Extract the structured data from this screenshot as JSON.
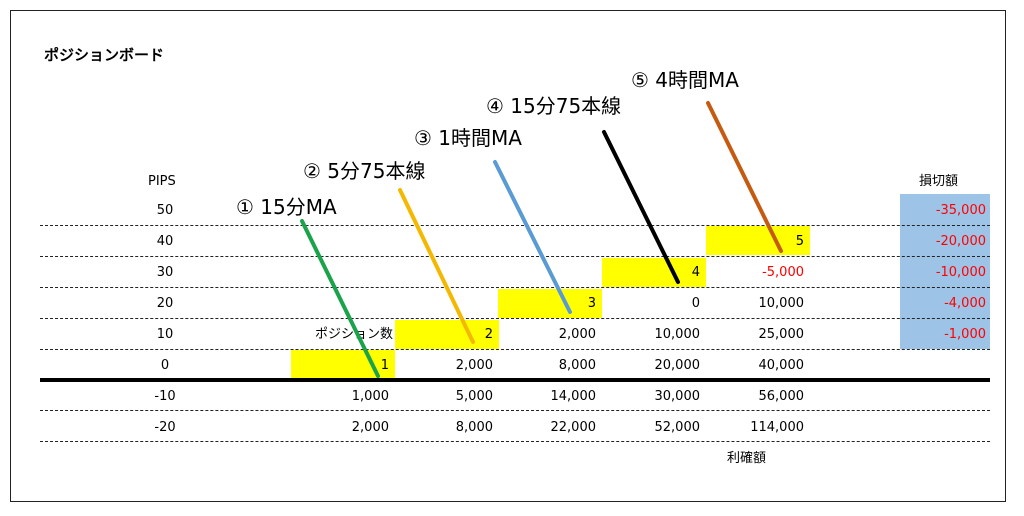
{
  "title": "ポジションボード",
  "pips_header": "PIPS",
  "loss_header": "損切額",
  "profit_header": "利確額",
  "position_count_label": "ポジション数",
  "pips_rows": [
    "50",
    "40",
    "30",
    "20",
    "10",
    "0",
    "-10",
    "-20"
  ],
  "loss_values": [
    "-35,000",
    "-20,000",
    "-10,000",
    "-4,000",
    "-1,000"
  ],
  "position_markers": [
    "1",
    "2",
    "3",
    "4",
    "5"
  ],
  "grid": {
    "row_30_col_5": "-5,000",
    "row_20_col_4": "0",
    "row_20_col_5": "10,000",
    "row_10_col_3": "2,000",
    "row_10_col_4": "10,000",
    "row_10_col_5": "25,000",
    "row_0_col_2": "2,000",
    "row_0_col_3": "8,000",
    "row_0_col_4": "20,000",
    "row_0_col_5": "40,000",
    "row_m10": [
      "1,000",
      "5,000",
      "14,000",
      "30,000",
      "56,000"
    ],
    "row_m20": [
      "2,000",
      "8,000",
      "22,000",
      "52,000",
      "114,000"
    ]
  },
  "callouts": [
    {
      "text": "① 15分MA",
      "color": "#1aa34a"
    },
    {
      "text": "② 5分75本線",
      "color": "#f5b800"
    },
    {
      "text": "③ 1時間MA",
      "color": "#5b9bd5"
    },
    {
      "text": "④ 15分75本線",
      "color": "#000000"
    },
    {
      "text": "⑤ 4時間MA",
      "color": "#c55a11"
    }
  ]
}
